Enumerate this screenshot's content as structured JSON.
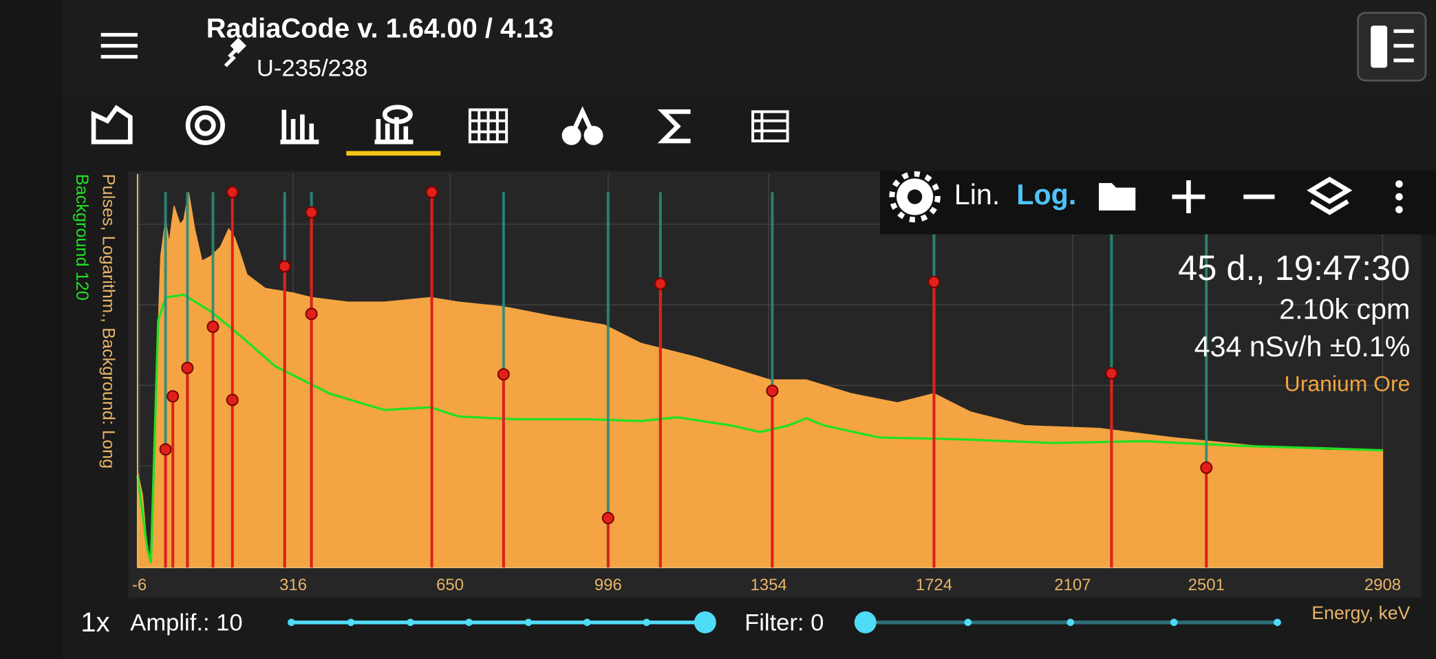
{
  "app": {
    "title": "RadiaCode v. 1.64.00 / 4.13",
    "subtitle": "U-235/238",
    "toolbar": {
      "lin": "Lin.",
      "log": "Log."
    },
    "stats": {
      "time": "45 d., 19:47:30",
      "rate": "2.10k cpm",
      "dose": "434 nSv/h ±0.1%",
      "source": "Uranium Ore"
    },
    "bottom": {
      "zoom": "1x",
      "amplif": "Amplif.: 10",
      "filter": "Filter: 0"
    }
  },
  "chart_data": {
    "type": "area",
    "log_scale": true,
    "grid": true,
    "ylabel": "Pulses, Logarithm., Background: Long",
    "ylabel2": "Background 120",
    "xlabel": "Energy, keV",
    "xlim": [
      0,
      1024
    ],
    "ylim": [
      0,
      430
    ],
    "xticks": [
      {
        "value": 1.5,
        "label": "-6"
      },
      {
        "value": 128,
        "label": "316"
      },
      {
        "value": 257,
        "label": "650"
      },
      {
        "value": 387,
        "label": "996"
      },
      {
        "value": 519,
        "label": "1354"
      },
      {
        "value": 655,
        "label": "1724"
      },
      {
        "value": 769,
        "label": "2107"
      },
      {
        "value": 879,
        "label": "2501"
      },
      {
        "value": 1024,
        "label": "2908"
      }
    ],
    "yticks": [
      23,
      111,
      199,
      287,
      375
    ],
    "series": [
      {
        "color": "#f4a442",
        "x": [
          0,
          4,
          8,
          11,
          15,
          19,
          23,
          26,
          30,
          35,
          38,
          42,
          47,
          53,
          60,
          68,
          75,
          80,
          84,
          90,
          105,
          128,
          143,
          173,
          203,
          241,
          264,
          301,
          339,
          384,
          414,
          459,
          520,
          550,
          587,
          625,
          655,
          685,
          730,
          791,
          851,
          926,
          979,
          1024
        ],
        "values": [
          105,
          80,
          20,
          5,
          190,
          340,
          380,
          355,
          395,
          375,
          380,
          410,
          370,
          335,
          340,
          350,
          370,
          360,
          345,
          320,
          305,
          300,
          295,
          290,
          290,
          295,
          290,
          285,
          275,
          265,
          245,
          230,
          205,
          205,
          190,
          180,
          190,
          170,
          155,
          152,
          142,
          132,
          128,
          128
        ]
      },
      {
        "color": "#22e022",
        "x": [
          0,
          8,
          11,
          17,
          23,
          38,
          60,
          83,
          113,
          128,
          158,
          203,
          241,
          264,
          309,
          369,
          414,
          444,
          489,
          512,
          535,
          550,
          565,
          610,
          678,
          753,
          828,
          904,
          979,
          1024
        ],
        "values": [
          100,
          20,
          5,
          270,
          295,
          298,
          280,
          255,
          220,
          210,
          190,
          172,
          175,
          165,
          162,
          162,
          160,
          164,
          155,
          148,
          155,
          163,
          155,
          142,
          140,
          136,
          138,
          133,
          130,
          128
        ]
      }
    ],
    "library_lines": [
      23,
      41,
      62,
      121,
      143,
      301,
      387,
      430,
      522,
      655,
      801,
      879
    ],
    "peaks": [
      {
        "x": 23,
        "values": [
          129
        ]
      },
      {
        "x": 29,
        "values": [
          187
        ]
      },
      {
        "x": 41,
        "values": [
          218
        ]
      },
      {
        "x": 62,
        "values": [
          263
        ]
      },
      {
        "x": 78,
        "values": [
          410,
          183
        ]
      },
      {
        "x": 121,
        "values": [
          329
        ]
      },
      {
        "x": 143,
        "values": [
          388,
          277
        ]
      },
      {
        "x": 242,
        "values": [
          410
        ]
      },
      {
        "x": 301,
        "values": [
          211
        ]
      },
      {
        "x": 387,
        "values": [
          54
        ]
      },
      {
        "x": 430,
        "values": [
          310
        ]
      },
      {
        "x": 522,
        "values": [
          193
        ]
      },
      {
        "x": 655,
        "values": [
          312
        ]
      },
      {
        "x": 801,
        "values": [
          212
        ]
      },
      {
        "x": 879,
        "values": [
          109
        ]
      }
    ]
  }
}
